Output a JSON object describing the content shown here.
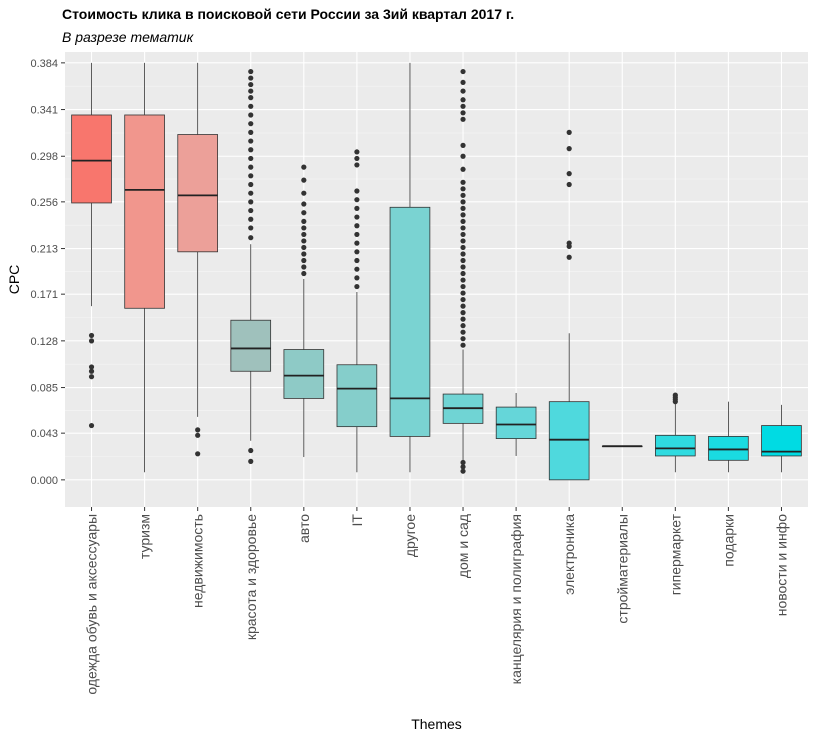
{
  "chart_data": {
    "type": "box",
    "title": "Стоимость клика в поисковой сети России за 3ий квартал 2017 г.",
    "subtitle": "В разрезе тематик",
    "xlabel": "Themes",
    "ylabel": "CPC",
    "ylim": [
      -0.025,
      0.394
    ],
    "yticks": [
      "0.000",
      "0.043",
      "0.085",
      "0.128",
      "0.171",
      "0.213",
      "0.256",
      "0.298",
      "0.341",
      "0.384"
    ],
    "grid": true,
    "legend": "none",
    "categories": [
      {
        "name": "одежда обувь и аксессуары",
        "color": "#f8766d",
        "min": 0.16,
        "q1": 0.255,
        "median": 0.294,
        "q3": 0.336,
        "max": 0.384,
        "outliers": [
          0.05,
          0.095,
          0.1,
          0.104,
          0.128,
          0.133
        ]
      },
      {
        "name": "туризм",
        "color": "#f1968d",
        "min": 0.007,
        "q1": 0.158,
        "median": 0.267,
        "q3": 0.336,
        "max": 0.384,
        "outliers": []
      },
      {
        "name": "недвижимость",
        "color": "#eca099",
        "min": 0.058,
        "q1": 0.21,
        "median": 0.262,
        "q3": 0.318,
        "max": 0.384,
        "outliers": [
          0.024,
          0.041,
          0.046
        ]
      },
      {
        "name": "красота и здоровье",
        "color": "#9fc1bc",
        "min": 0.036,
        "q1": 0.1,
        "median": 0.121,
        "q3": 0.147,
        "max": 0.217,
        "outliers": [
          0.017,
          0.027,
          0.223,
          0.232,
          0.24,
          0.248,
          0.256,
          0.264,
          0.272,
          0.28,
          0.288,
          0.296,
          0.304,
          0.312,
          0.32,
          0.328,
          0.336,
          0.344,
          0.352,
          0.358,
          0.364,
          0.37,
          0.376
        ]
      },
      {
        "name": "авто",
        "color": "#8ecac6",
        "min": 0.021,
        "q1": 0.075,
        "median": 0.096,
        "q3": 0.12,
        "max": 0.185,
        "outliers": [
          0.19,
          0.196,
          0.202,
          0.208,
          0.214,
          0.22,
          0.226,
          0.232,
          0.238,
          0.246,
          0.254,
          0.264,
          0.276,
          0.288
        ]
      },
      {
        "name": "IT",
        "color": "#85cecb",
        "min": 0.007,
        "q1": 0.049,
        "median": 0.084,
        "q3": 0.106,
        "max": 0.173,
        "outliers": [
          0.178,
          0.186,
          0.194,
          0.202,
          0.21,
          0.218,
          0.226,
          0.234,
          0.242,
          0.25,
          0.258,
          0.266,
          0.29,
          0.296,
          0.302
        ]
      },
      {
        "name": "другое",
        "color": "#7ad3d2",
        "min": 0.007,
        "q1": 0.04,
        "median": 0.075,
        "q3": 0.251,
        "max": 0.384,
        "outliers": []
      },
      {
        "name": "дом и сад",
        "color": "#70d4d4",
        "min": 0.018,
        "q1": 0.052,
        "median": 0.066,
        "q3": 0.079,
        "max": 0.12,
        "outliers": [
          0.008,
          0.012,
          0.016,
          0.124,
          0.13,
          0.136,
          0.142,
          0.148,
          0.154,
          0.16,
          0.166,
          0.172,
          0.178,
          0.184,
          0.19,
          0.196,
          0.202,
          0.208,
          0.214,
          0.22,
          0.226,
          0.232,
          0.238,
          0.244,
          0.25,
          0.256,
          0.262,
          0.268,
          0.274,
          0.286,
          0.298,
          0.308,
          0.332,
          0.338,
          0.344,
          0.35,
          0.358,
          0.366,
          0.376
        ]
      },
      {
        "name": "канцелярия и полиграфия",
        "color": "#65d6d9",
        "min": 0.022,
        "q1": 0.038,
        "median": 0.051,
        "q3": 0.067,
        "max": 0.08,
        "outliers": []
      },
      {
        "name": "электроника",
        "color": "#4fd9dd",
        "min": 0.0,
        "q1": 0.0,
        "median": 0.037,
        "q3": 0.072,
        "max": 0.135,
        "outliers": [
          0.205,
          0.215,
          0.218,
          0.272,
          0.282,
          0.305,
          0.32
        ]
      },
      {
        "name": "стройматериалы",
        "color": "#3ed9de",
        "min": 0.031,
        "q1": 0.031,
        "median": 0.031,
        "q3": 0.031,
        "max": 0.031,
        "outliers": []
      },
      {
        "name": "гипермаркет",
        "color": "#2fdbe0",
        "min": 0.007,
        "q1": 0.022,
        "median": 0.029,
        "q3": 0.041,
        "max": 0.07,
        "outliers": [
          0.072,
          0.074,
          0.076,
          0.078
        ]
      },
      {
        "name": "подарки",
        "color": "#1adbe1",
        "min": 0.007,
        "q1": 0.018,
        "median": 0.028,
        "q3": 0.04,
        "max": 0.072,
        "outliers": []
      },
      {
        "name": "новости и инфо",
        "color": "#00dbe3",
        "min": 0.007,
        "q1": 0.022,
        "median": 0.026,
        "q3": 0.05,
        "max": 0.069,
        "outliers": []
      }
    ]
  }
}
